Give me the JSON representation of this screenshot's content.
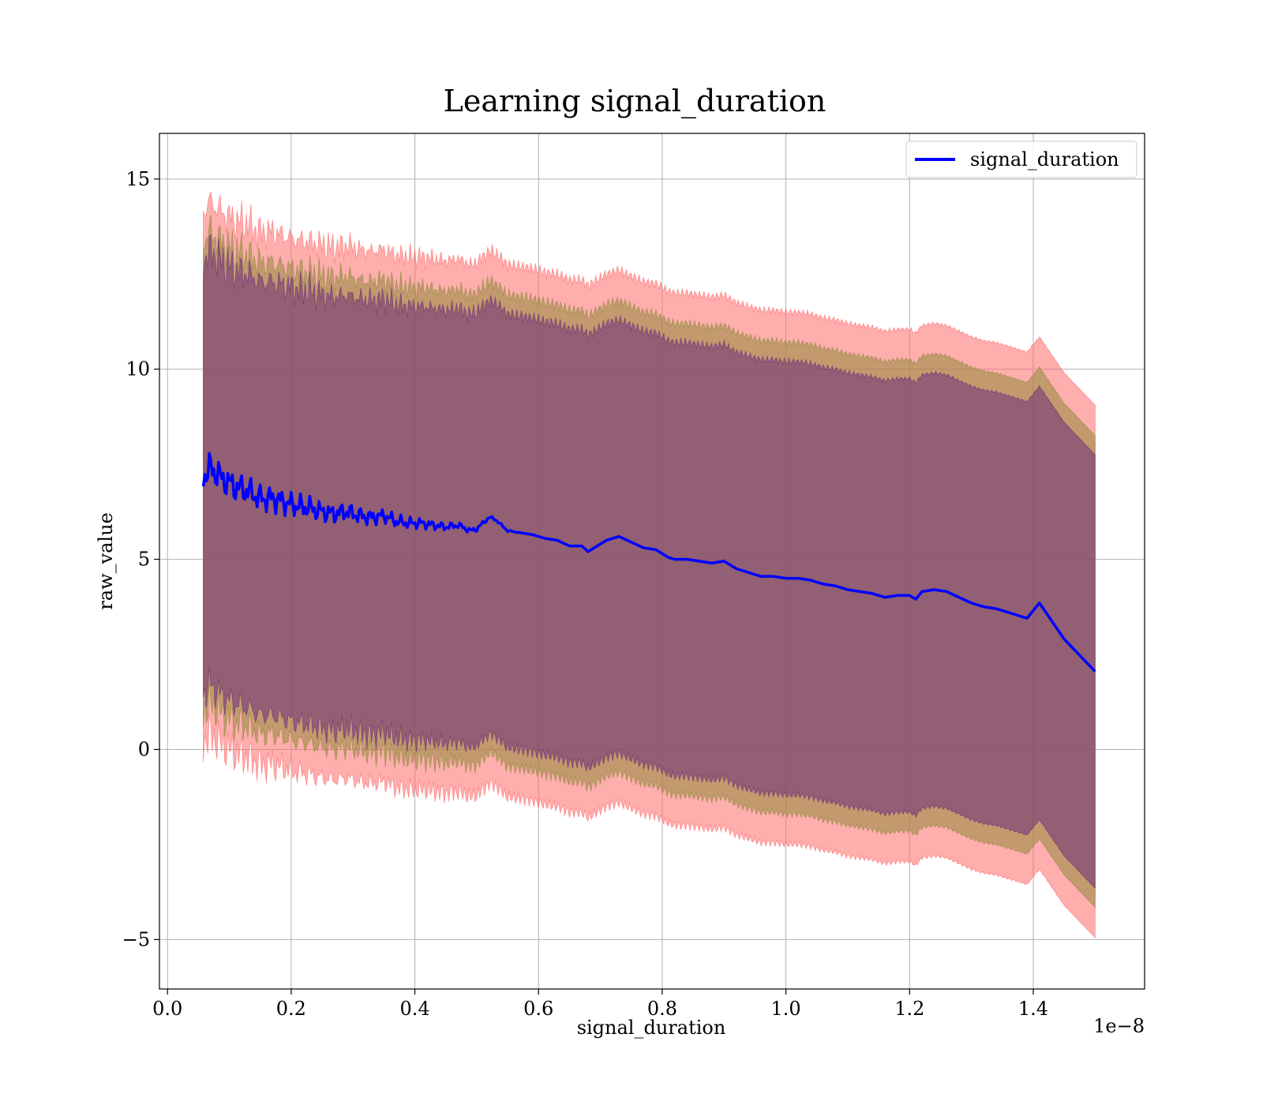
{
  "chart_data": {
    "type": "line",
    "title": "Learning signal_duration",
    "xlabel": "signal_duration",
    "ylabel": "raw_value",
    "x_offset_label": "1e−8",
    "xlim": [
      -0.013,
      1.58
    ],
    "ylim": [
      -6.3,
      16.2
    ],
    "grid": true,
    "legend_position": "top-right",
    "x_ticks": [
      0.0,
      0.2,
      0.4,
      0.6,
      0.8,
      1.0,
      1.2,
      1.4
    ],
    "x_tick_labels": [
      "0.0",
      "0.2",
      "0.4",
      "0.6",
      "0.8",
      "1.0",
      "1.2",
      "1.4"
    ],
    "y_ticks": [
      -5,
      0,
      5,
      10,
      15
    ],
    "y_tick_labels": [
      "−5",
      "0",
      "5",
      "10",
      "15"
    ],
    "colors": {
      "line": "#0000ff",
      "band_outer": "#ff6b6b",
      "band_middle": "#8f8a3a",
      "band_inner": "#6b2f7a"
    },
    "band_alpha": 0.55,
    "band_half_widths": [
      7.0,
      6.2,
      5.7
    ],
    "series": [
      {
        "name": "signal_duration",
        "x": [
          0.058,
          0.07,
          0.09,
          0.11,
          0.13,
          0.15,
          0.17,
          0.19,
          0.21,
          0.23,
          0.25,
          0.27,
          0.29,
          0.31,
          0.33,
          0.35,
          0.37,
          0.39,
          0.41,
          0.43,
          0.45,
          0.47,
          0.49,
          0.5,
          0.52,
          0.53,
          0.55,
          0.57,
          0.59,
          0.61,
          0.63,
          0.65,
          0.67,
          0.68,
          0.69,
          0.71,
          0.73,
          0.75,
          0.77,
          0.79,
          0.81,
          0.82,
          0.84,
          0.86,
          0.88,
          0.9,
          0.92,
          0.94,
          0.96,
          0.98,
          1.0,
          1.02,
          1.04,
          1.06,
          1.08,
          1.1,
          1.12,
          1.14,
          1.16,
          1.18,
          1.2,
          1.21,
          1.22,
          1.24,
          1.26,
          1.28,
          1.3,
          1.32,
          1.34,
          1.36,
          1.39,
          1.41,
          1.45,
          1.5
        ],
        "values": [
          7.2,
          7.4,
          7.1,
          6.9,
          6.8,
          6.6,
          6.6,
          6.5,
          6.4,
          6.35,
          6.25,
          6.2,
          6.25,
          6.15,
          6.1,
          6.15,
          6.0,
          5.95,
          5.95,
          5.9,
          5.85,
          5.9,
          5.75,
          5.8,
          6.1,
          6.05,
          5.75,
          5.7,
          5.65,
          5.55,
          5.5,
          5.35,
          5.35,
          5.2,
          5.3,
          5.5,
          5.6,
          5.45,
          5.3,
          5.25,
          5.05,
          5.0,
          5.0,
          4.95,
          4.9,
          4.95,
          4.75,
          4.65,
          4.55,
          4.55,
          4.5,
          4.5,
          4.45,
          4.35,
          4.3,
          4.2,
          4.15,
          4.1,
          4.0,
          4.05,
          4.05,
          3.95,
          4.15,
          4.2,
          4.15,
          4.0,
          3.85,
          3.75,
          3.7,
          3.6,
          3.45,
          3.85,
          2.9,
          2.05
        ]
      }
    ]
  }
}
